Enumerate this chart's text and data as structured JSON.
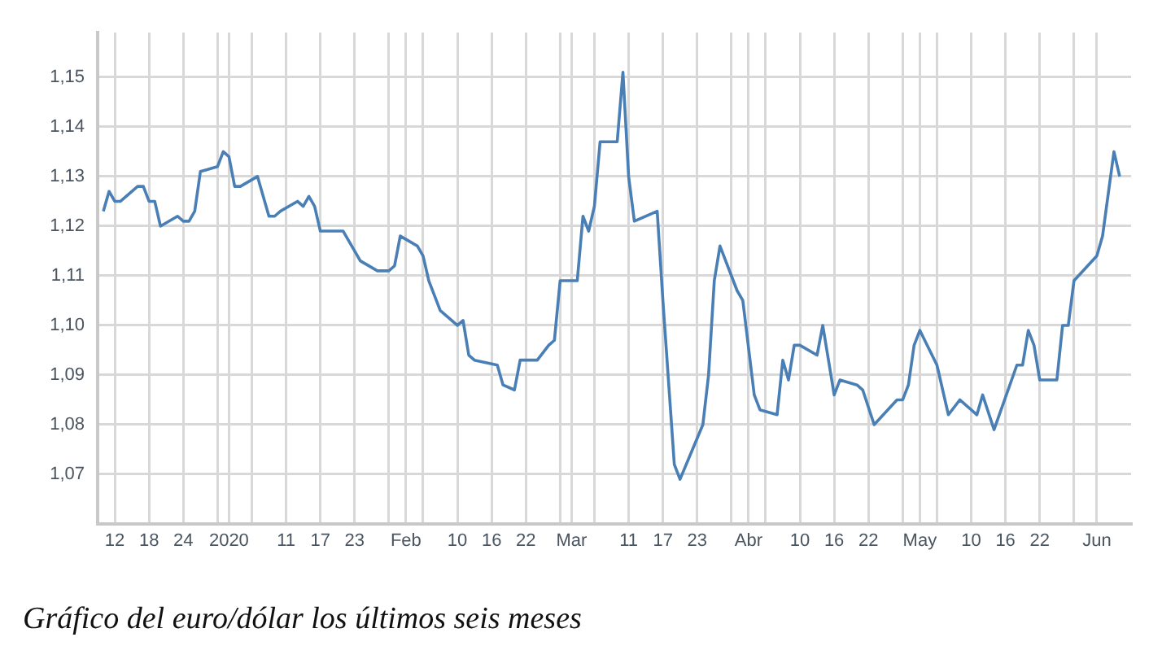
{
  "chart_data": {
    "type": "line",
    "annotations": [
      "Gráfico del euro/dólar los últimos seis meses"
    ],
    "x": [
      "2019-12-10",
      "2019-12-11",
      "2019-12-12",
      "2019-12-13",
      "2019-12-16",
      "2019-12-17",
      "2019-12-18",
      "2019-12-19",
      "2019-12-20",
      "2019-12-23",
      "2019-12-24",
      "2019-12-25",
      "2019-12-26",
      "2019-12-27",
      "2019-12-30",
      "2019-12-31",
      "2020-01-01",
      "2020-01-02",
      "2020-01-03",
      "2020-01-06",
      "2020-01-08",
      "2020-01-09",
      "2020-01-10",
      "2020-01-13",
      "2020-01-14",
      "2020-01-15",
      "2020-01-16",
      "2020-01-17",
      "2020-01-21",
      "2020-01-23",
      "2020-01-24",
      "2020-01-27",
      "2020-01-29",
      "2020-01-30",
      "2020-01-31",
      "2020-02-03",
      "2020-02-04",
      "2020-02-05",
      "2020-02-07",
      "2020-02-10",
      "2020-02-11",
      "2020-02-12",
      "2020-02-13",
      "2020-02-17",
      "2020-02-18",
      "2020-02-20",
      "2020-02-21",
      "2020-02-24",
      "2020-02-26",
      "2020-02-27",
      "2020-02-28",
      "2020-03-02",
      "2020-03-03",
      "2020-03-04",
      "2020-03-05",
      "2020-03-06",
      "2020-03-09",
      "2020-03-10",
      "2020-03-11",
      "2020-03-12",
      "2020-03-16",
      "2020-03-17",
      "2020-03-19",
      "2020-03-20",
      "2020-03-24",
      "2020-03-25",
      "2020-03-26",
      "2020-03-27",
      "2020-03-30",
      "2020-03-31",
      "2020-04-02",
      "2020-04-03",
      "2020-04-06",
      "2020-04-07",
      "2020-04-08",
      "2020-04-09",
      "2020-04-10",
      "2020-04-13",
      "2020-04-14",
      "2020-04-16",
      "2020-04-17",
      "2020-04-20",
      "2020-04-21",
      "2020-04-23",
      "2020-04-27",
      "2020-04-28",
      "2020-04-29",
      "2020-04-30",
      "2020-05-01",
      "2020-05-04",
      "2020-05-06",
      "2020-05-08",
      "2020-05-11",
      "2020-05-12",
      "2020-05-14",
      "2020-05-18",
      "2020-05-19",
      "2020-05-20",
      "2020-05-21",
      "2020-05-22",
      "2020-05-25",
      "2020-05-26",
      "2020-05-27",
      "2020-05-28",
      "2020-06-01",
      "2020-06-02",
      "2020-06-04",
      "2020-06-05"
    ],
    "series": [
      {
        "color": "#4a7fb5",
        "values": [
          1.123,
          1.127,
          1.125,
          1.125,
          1.128,
          1.128,
          1.125,
          1.125,
          1.12,
          1.122,
          1.121,
          1.121,
          1.123,
          1.131,
          1.132,
          1.135,
          1.134,
          1.128,
          1.128,
          1.13,
          1.122,
          1.122,
          1.123,
          1.125,
          1.124,
          1.126,
          1.124,
          1.119,
          1.119,
          1.115,
          1.113,
          1.111,
          1.111,
          1.112,
          1.118,
          1.116,
          1.114,
          1.109,
          1.103,
          1.1,
          1.101,
          1.094,
          1.093,
          1.092,
          1.088,
          1.087,
          1.093,
          1.093,
          1.096,
          1.097,
          1.109,
          1.109,
          1.122,
          1.119,
          1.124,
          1.137,
          1.137,
          1.151,
          1.13,
          1.121,
          1.123,
          1.105,
          1.072,
          1.069,
          1.08,
          1.09,
          1.109,
          1.116,
          1.107,
          1.105,
          1.086,
          1.083,
          1.082,
          1.093,
          1.089,
          1.096,
          1.096,
          1.094,
          1.1,
          1.086,
          1.089,
          1.088,
          1.087,
          1.08,
          1.085,
          1.085,
          1.088,
          1.096,
          1.099,
          1.092,
          1.082,
          1.085,
          1.082,
          1.086,
          1.079,
          1.092,
          1.092,
          1.099,
          1.096,
          1.089,
          1.089,
          1.1,
          1.1,
          1.109,
          1.114,
          1.118,
          1.135,
          1.13
        ]
      }
    ],
    "xlim": [
      "2019-12-09",
      "2020-06-07"
    ],
    "xticks": [
      {
        "value": "2019-12-12",
        "label": "12"
      },
      {
        "value": "2019-12-18",
        "label": "18"
      },
      {
        "value": "2019-12-24",
        "label": "24"
      },
      {
        "value": "2019-12-30",
        "label": null
      },
      {
        "value": "2020-01-01",
        "label": "2020"
      },
      {
        "value": "2020-01-05",
        "label": null
      },
      {
        "value": "2020-01-11",
        "label": "11"
      },
      {
        "value": "2020-01-17",
        "label": "17"
      },
      {
        "value": "2020-01-23",
        "label": "23"
      },
      {
        "value": "2020-01-29",
        "label": null
      },
      {
        "value": "2020-02-01",
        "label": "Feb"
      },
      {
        "value": "2020-02-04",
        "label": null
      },
      {
        "value": "2020-02-10",
        "label": "10"
      },
      {
        "value": "2020-02-16",
        "label": "16"
      },
      {
        "value": "2020-02-22",
        "label": "22"
      },
      {
        "value": "2020-02-28",
        "label": null
      },
      {
        "value": "2020-03-01",
        "label": "Mar"
      },
      {
        "value": "2020-03-05",
        "label": null
      },
      {
        "value": "2020-03-11",
        "label": "11"
      },
      {
        "value": "2020-03-17",
        "label": "17"
      },
      {
        "value": "2020-03-23",
        "label": "23"
      },
      {
        "value": "2020-03-29",
        "label": null
      },
      {
        "value": "2020-04-01",
        "label": "Abr"
      },
      {
        "value": "2020-04-04",
        "label": null
      },
      {
        "value": "2020-04-10",
        "label": "10"
      },
      {
        "value": "2020-04-16",
        "label": "16"
      },
      {
        "value": "2020-04-22",
        "label": "22"
      },
      {
        "value": "2020-04-28",
        "label": null
      },
      {
        "value": "2020-05-01",
        "label": "May"
      },
      {
        "value": "2020-05-04",
        "label": null
      },
      {
        "value": "2020-05-10",
        "label": "10"
      },
      {
        "value": "2020-05-16",
        "label": "16"
      },
      {
        "value": "2020-05-22",
        "label": "22"
      },
      {
        "value": "2020-05-28",
        "label": null
      },
      {
        "value": "2020-06-01",
        "label": "Jun"
      }
    ],
    "ylim": [
      1.06,
      1.159
    ],
    "yticks": [
      {
        "value": 1.07,
        "label": "1,07"
      },
      {
        "value": 1.08,
        "label": "1,08"
      },
      {
        "value": 1.09,
        "label": "1,09"
      },
      {
        "value": 1.1,
        "label": "1,10"
      },
      {
        "value": 1.11,
        "label": "1,11"
      },
      {
        "value": 1.12,
        "label": "1,12"
      },
      {
        "value": 1.13,
        "label": "1,13"
      },
      {
        "value": 1.14,
        "label": "1,14"
      },
      {
        "value": 1.15,
        "label": "1,15"
      }
    ],
    "grid": true,
    "marker": "none",
    "line_style": "solid",
    "legend": false
  }
}
